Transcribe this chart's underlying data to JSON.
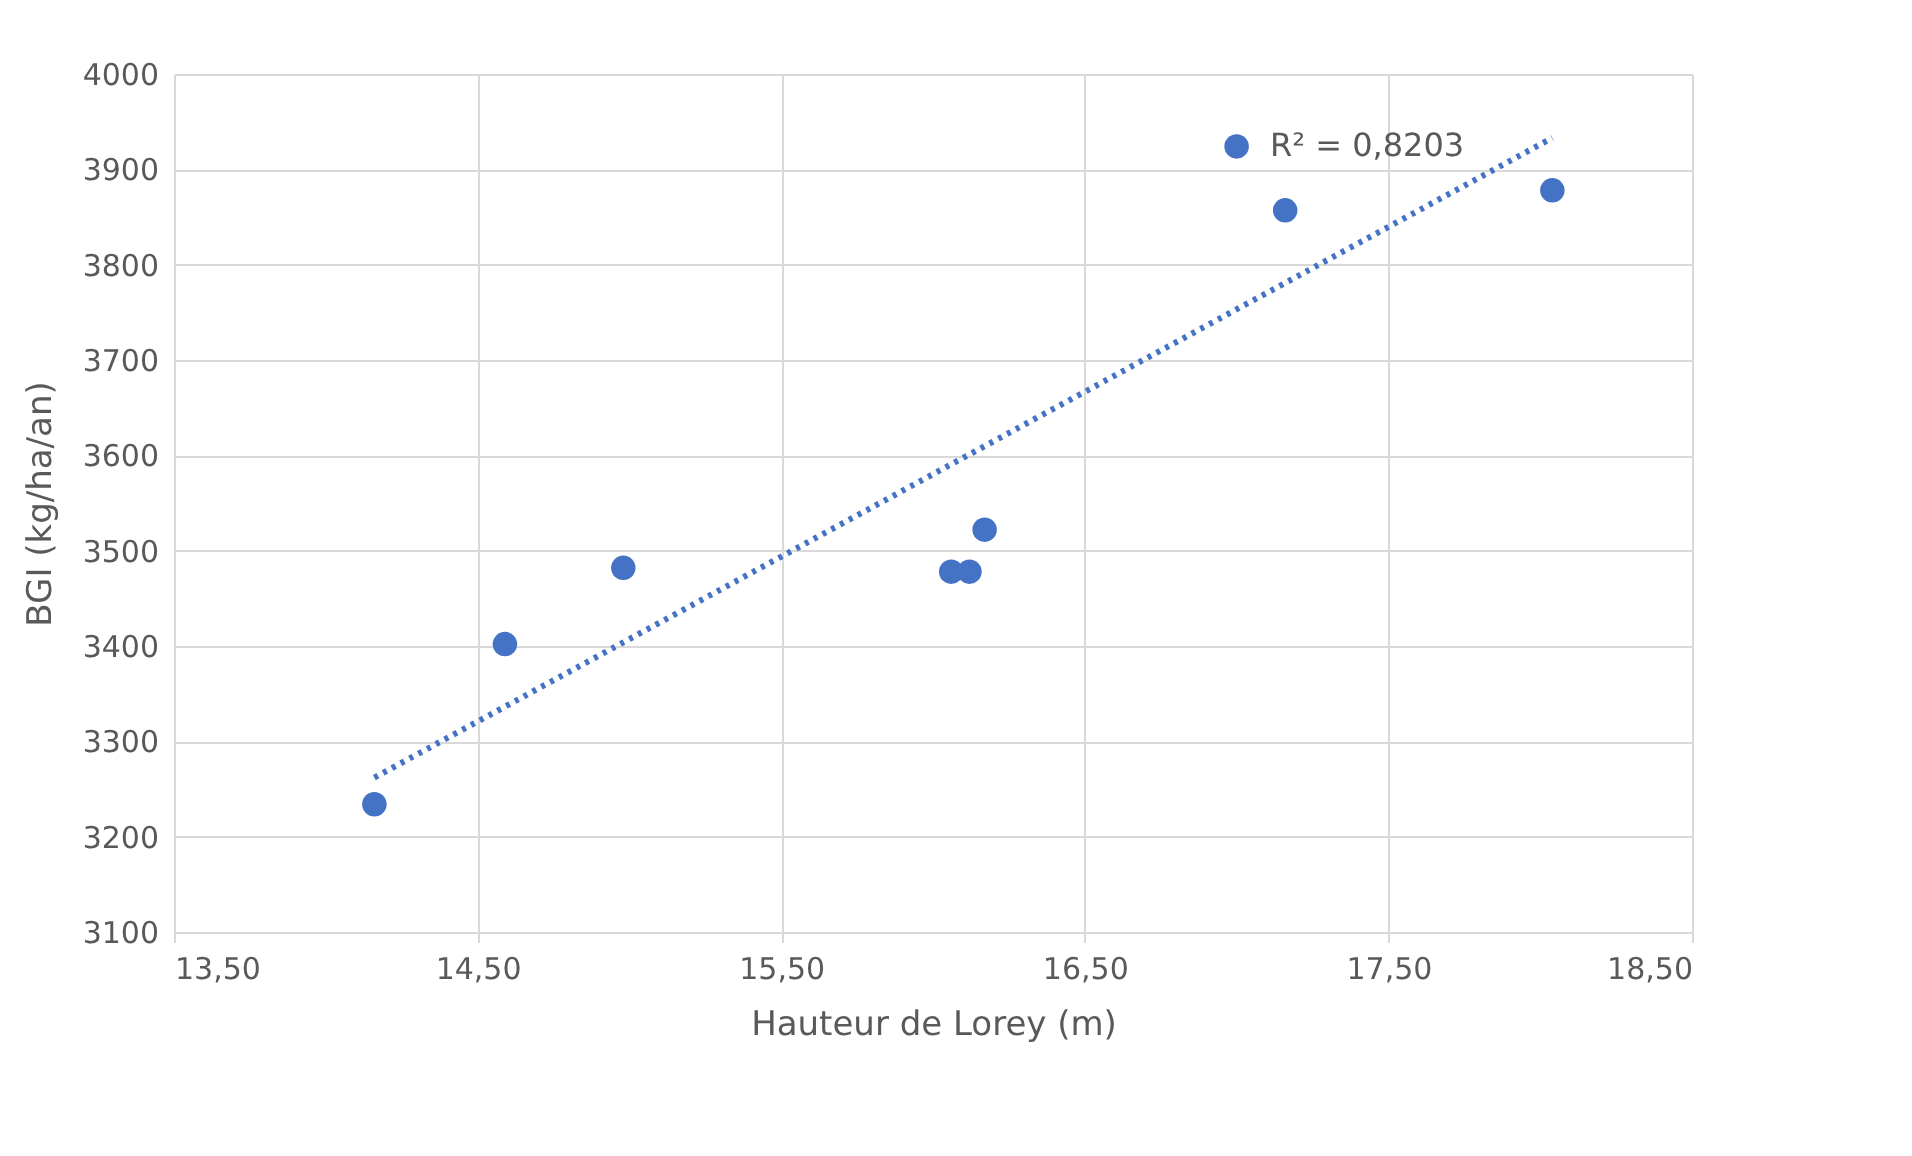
{
  "chart_data": {
    "type": "scatter",
    "xlabel": "Hauteur de Lorey (m)",
    "ylabel": "BGI (kg/ha/an)",
    "xlim": [
      13.5,
      18.5
    ],
    "xticks": [
      {
        "value": 13.5,
        "label": "13,50"
      },
      {
        "value": 14.5,
        "label": "14,50"
      },
      {
        "value": 15.5,
        "label": "15,50"
      },
      {
        "value": 16.5,
        "label": "16,50"
      },
      {
        "value": 17.5,
        "label": "17,50"
      },
      {
        "value": 18.5,
        "label": "18,50"
      }
    ],
    "ylim": [
      3100,
      4000
    ],
    "yticks": [
      3100,
      3200,
      3300,
      3400,
      3500,
      3600,
      3700,
      3800,
      3900,
      4000
    ],
    "grid": true,
    "series": [
      {
        "marker": "circle",
        "color": "#4472c4",
        "x": [
          14.16,
          14.59,
          14.98,
          16.06,
          16.12,
          16.17,
          17.0,
          17.16,
          18.04
        ],
        "values": [
          3234,
          3402,
          3482,
          3478,
          3478,
          3522,
          3924,
          3857,
          3878
        ]
      },
      {
        "type": "line",
        "marker": "none",
        "color": "#4472c4",
        "line_style": "dotted",
        "x": [
          14.16,
          18.04
        ],
        "values": [
          3262,
          3933
        ]
      }
    ],
    "annotations": [
      "R² = 0,8203"
    ]
  }
}
